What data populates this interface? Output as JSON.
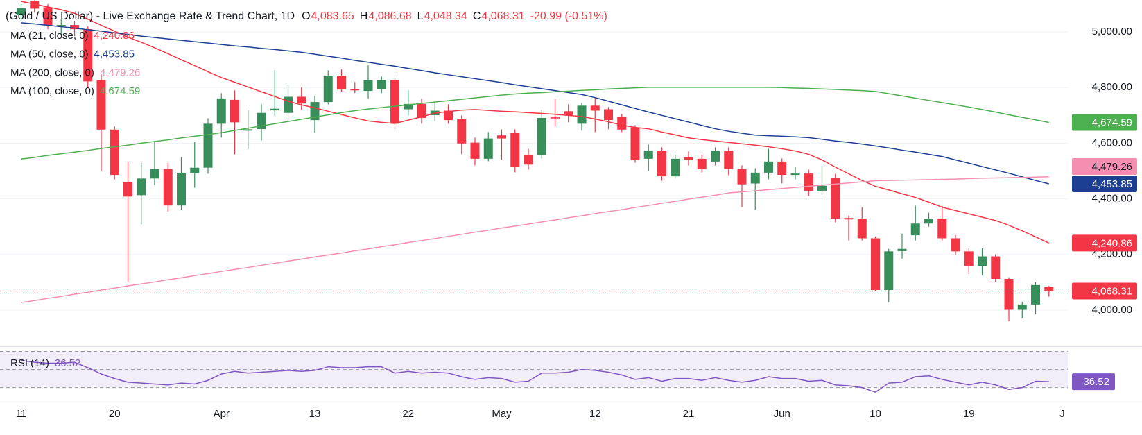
{
  "chart_data": {
    "type": "candlestick",
    "title": "(Gold / US Dollar) - Live Exchange Rate & Trend Chart, 1D",
    "ohlc_keys": [
      "O",
      "H",
      "L",
      "C"
    ],
    "ohlc_labels": [
      "4,083.65",
      "4,086.68",
      "4,048.34",
      "4,068.31"
    ],
    "change_label": "-20.99 (-0.51%)",
    "up_color": "#388e5a",
    "down_color": "#f23645",
    "grid": true,
    "categories": [
      "11",
      null,
      null,
      null,
      null,
      null,
      null,
      "20",
      null,
      null,
      null,
      null,
      null,
      null,
      null,
      "Apr",
      null,
      null,
      null,
      null,
      null,
      null,
      "13",
      null,
      null,
      null,
      null,
      null,
      null,
      "22",
      null,
      null,
      null,
      null,
      null,
      null,
      "May",
      null,
      null,
      null,
      null,
      null,
      null,
      "12",
      null,
      null,
      null,
      null,
      null,
      null,
      "21",
      null,
      null,
      null,
      null,
      null,
      null,
      "Jun",
      null,
      null,
      null,
      null,
      null,
      null,
      "10",
      null,
      null,
      null,
      null,
      null,
      null,
      "19",
      null,
      null,
      null,
      null,
      null,
      null,
      "J"
    ],
    "open": [
      5060,
      5112,
      5089,
      5020,
      5025,
      5010,
      4827,
      4649,
      4460,
      4413,
      4473,
      4507,
      4376,
      4492,
      4512,
      4670,
      4756,
      4645,
      4651,
      4718,
      4709,
      4767,
      4683,
      4748,
      4843,
      4795,
      4788,
      4795,
      4827,
      4722,
      4741,
      4701,
      4717,
      4688,
      4602,
      4544,
      4628,
      4636,
      4557,
      4557,
      4693,
      4715,
      4670,
      4735,
      4722,
      4696,
      4657,
      4544,
      4573,
      4481,
      4549,
      4544,
      4534,
      4573,
      4507,
      4455,
      4494,
      4534,
      4486,
      4491,
      4429,
      4476,
      4331,
      4329,
      4258,
      4072,
      4212,
      4269,
      4311,
      4329,
      4258,
      4211,
      4159,
      4193,
      4112,
      4001,
      4020,
      4083.65,
      null
    ],
    "high": [
      5100,
      5114,
      5100,
      5045,
      5040,
      5020,
      4850,
      4660,
      4533,
      4530,
      4604,
      4530,
      4550,
      4604,
      4690,
      4780,
      4790,
      4720,
      4740,
      4862,
      4810,
      4800,
      4770,
      4862,
      4865,
      4820,
      4880,
      4840,
      4840,
      4790,
      4760,
      4750,
      4740,
      4700,
      4620,
      4640,
      4650,
      4650,
      4580,
      4720,
      4760,
      4740,
      4745,
      4765,
      4730,
      4705,
      4665,
      4595,
      4585,
      4560,
      4570,
      4560,
      4585,
      4585,
      4520,
      4510,
      4580,
      4545,
      4515,
      4505,
      4520,
      4490,
      4340,
      4370,
      4265,
      4220,
      4275,
      4375,
      4350,
      4375,
      4270,
      4222,
      4222,
      4200,
      4118,
      4030,
      4100,
      4086.68,
      null
    ],
    "low": [
      5040,
      5070,
      5010,
      4990,
      4985,
      4800,
      4500,
      4470,
      4101,
      4308,
      4450,
      4355,
      4360,
      4440,
      4490,
      4620,
      4560,
      4580,
      4610,
      4700,
      4680,
      4720,
      4638,
      4740,
      4785,
      4780,
      4760,
      4780,
      4650,
      4700,
      4670,
      4680,
      4670,
      4560,
      4520,
      4535,
      4540,
      4495,
      4505,
      4545,
      4660,
      4675,
      4645,
      4640,
      4650,
      4640,
      4530,
      4500,
      4465,
      4475,
      4520,
      4495,
      4520,
      4485,
      4370,
      4360,
      4470,
      4455,
      4470,
      4410,
      4415,
      4315,
      4250,
      4250,
      4068,
      4028,
      4185,
      4250,
      4300,
      4250,
      4200,
      4130,
      4125,
      4100,
      3960,
      3970,
      3985,
      4048.34,
      null
    ],
    "close": [
      5085,
      5084,
      5024,
      5025,
      5010,
      4822,
      4649,
      4486,
      4408,
      4473,
      4507,
      4376,
      4494,
      4512,
      4670,
      4761,
      4675,
      4650,
      4709,
      4724,
      4767,
      4743,
      4748,
      4843,
      4793,
      4790,
      4827,
      4827,
      4670,
      4741,
      4691,
      4717,
      4683,
      4599,
      4544,
      4617,
      4617,
      4515,
      4523,
      4691,
      4689,
      4700,
      4735,
      4717,
      4683,
      4649,
      4539,
      4573,
      4481,
      4544,
      4539,
      4507,
      4573,
      4507,
      4452,
      4494,
      4534,
      4486,
      4491,
      4429,
      4447,
      4329,
      4326,
      4258,
      4072,
      4211,
      4220,
      4311,
      4329,
      4258,
      4211,
      4159,
      4193,
      4112,
      4001,
      4020,
      4090,
      4068.31,
      null
    ],
    "series": [
      {
        "name": "MA (21, close, 0)",
        "color": "#f23645",
        "value_label": "4,240.86",
        "values": [
          5110,
          5100,
          5090,
          5080,
          5067,
          5046,
          5024,
          5003,
          4981,
          4963,
          4943,
          4922,
          4900,
          4879,
          4857,
          4836,
          4819,
          4802,
          4785,
          4768,
          4751,
          4738,
          4727,
          4715,
          4703,
          4691,
          4680,
          4675,
          4671,
          4683,
          4695,
          4708,
          4714,
          4719,
          4721,
          4718,
          4715,
          4713,
          4710,
          4707,
          4704,
          4700,
          4696,
          4687,
          4677,
          4665,
          4657,
          4652,
          4640,
          4630,
          4619,
          4613,
          4608,
          4603,
          4598,
          4593,
          4587,
          4580,
          4572,
          4560,
          4540,
          4514,
          4490,
          4466,
          4445,
          4432,
          4418,
          4405,
          4388,
          4370,
          4358,
          4346,
          4334,
          4322,
          4305,
          4285,
          4263,
          4240.86,
          null
        ]
      },
      {
        "name": "MA (50, close, 0)",
        "color": "#1c3f94",
        "value_label": "4,453.85",
        "values": [
          5033,
          5029,
          5024,
          5019,
          5014,
          5008,
          5003,
          4997,
          4991,
          4985,
          4980,
          4975,
          4970,
          4965,
          4960,
          4955,
          4950,
          4946,
          4941,
          4937,
          4932,
          4927,
          4920,
          4913,
          4906,
          4898,
          4891,
          4884,
          4877,
          4869,
          4861,
          4853,
          4846,
          4839,
          4832,
          4825,
          4818,
          4810,
          4803,
          4796,
          4789,
          4782,
          4775,
          4764,
          4751,
          4738,
          4725,
          4712,
          4700,
          4688,
          4676,
          4664,
          4652,
          4643,
          4636,
          4629,
          4627,
          4625,
          4623,
          4620,
          4614,
          4608,
          4603,
          4597,
          4590,
          4583,
          4575,
          4568,
          4560,
          4552,
          4540,
          4528,
          4516,
          4504,
          4492,
          4479,
          4466,
          4453.85,
          null
        ]
      },
      {
        "name": "MA (200, close, 0)",
        "color": "#f48fb1",
        "value_label": "4,479.26",
        "values": [
          4027,
          4034,
          4042,
          4049,
          4057,
          4064,
          4072,
          4079,
          4087,
          4094,
          4101,
          4109,
          4116,
          4124,
          4131,
          4139,
          4146,
          4153,
          4161,
          4168,
          4176,
          4183,
          4191,
          4198,
          4205,
          4213,
          4220,
          4228,
          4235,
          4243,
          4250,
          4257,
          4265,
          4272,
          4280,
          4287,
          4295,
          4302,
          4309,
          4317,
          4324,
          4332,
          4339,
          4347,
          4354,
          4361,
          4369,
          4376,
          4384,
          4391,
          4399,
          4406,
          4413,
          4421,
          4425,
          4429,
          4433,
          4437,
          4441,
          4445,
          4449,
          4453,
          4457,
          4461,
          4465,
          4466,
          4467,
          4468,
          4469,
          4470,
          4471,
          4473,
          4474,
          4475,
          4476,
          4477,
          4478,
          4479.26,
          null
        ]
      },
      {
        "name": "MA (100, close, 0)",
        "color": "#4caf50",
        "value_label": "4,674.59",
        "values": [
          4543,
          4549,
          4556,
          4562,
          4568,
          4574,
          4581,
          4587,
          4593,
          4600,
          4606,
          4612,
          4619,
          4625,
          4631,
          4638,
          4646,
          4654,
          4662,
          4670,
          4678,
          4686,
          4694,
          4702,
          4710,
          4717,
          4723,
          4728,
          4733,
          4738,
          4743,
          4748,
          4753,
          4758,
          4763,
          4768,
          4773,
          4777,
          4780,
          4782,
          4785,
          4787,
          4790,
          4792,
          4795,
          4797,
          4799,
          4801,
          4801,
          4801,
          4801,
          4801,
          4801,
          4801,
          4801,
          4801,
          4801,
          4800,
          4798,
          4797,
          4795,
          4793,
          4791,
          4789,
          4786,
          4778,
          4770,
          4762,
          4754,
          4746,
          4738,
          4730,
          4721,
          4712,
          4702,
          4693,
          4684,
          4674.59,
          null
        ]
      }
    ],
    "ylim": [
      3870,
      5115
    ],
    "yticks": [
      {
        "value": 5000,
        "label": "5,000.00"
      },
      {
        "value": 4800,
        "label": "4,800.00"
      },
      {
        "value": 4600,
        "label": "4,600.00"
      },
      {
        "value": 4400,
        "label": "4,400.00"
      },
      {
        "value": 4200,
        "label": "4,200.00"
      },
      {
        "value": 4000,
        "label": "4,000.00"
      }
    ],
    "rsi": {
      "name": "RSI (14)",
      "color": "#7e57c2",
      "ylim": [
        19,
        75
      ],
      "levels": [
        70,
        50,
        30
      ],
      "values": [
        60,
        58,
        57,
        57,
        58,
        52,
        45,
        40,
        36,
        35,
        34,
        33,
        35,
        34,
        38,
        45,
        48,
        46,
        47,
        48,
        49,
        48,
        49,
        53,
        52,
        52,
        53,
        53,
        46,
        48,
        46,
        47,
        46,
        42,
        39,
        41,
        40,
        36,
        37,
        46,
        46,
        47,
        50,
        49,
        47,
        44,
        39,
        41,
        37,
        40,
        40,
        38,
        41,
        38,
        36,
        38,
        42,
        40,
        40,
        37,
        38,
        33,
        32,
        30,
        25,
        35,
        36,
        42,
        43,
        39,
        36,
        33,
        36,
        33,
        28,
        30,
        37,
        36.52,
        null
      ]
    }
  }
}
